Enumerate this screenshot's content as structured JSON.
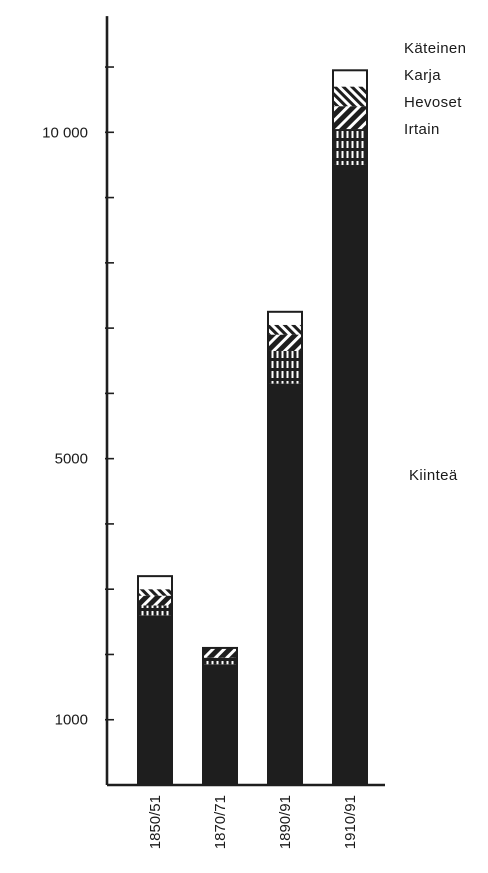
{
  "chart_data": {
    "type": "bar",
    "stacked": true,
    "categories": [
      "1850/51",
      "1870/71",
      "1890/91",
      "1910/91"
    ],
    "series": [
      {
        "name": "Kiinteä",
        "pattern": "solid",
        "values": [
          2600,
          1850,
          6150,
          9500
        ]
      },
      {
        "name": "Irtain",
        "pattern": "vertical-dashes",
        "values": [
          150,
          100,
          500,
          550
        ]
      },
      {
        "name": "Hevoset",
        "pattern": "diagonal",
        "values": [
          150,
          150,
          250,
          350
        ]
      },
      {
        "name": "Karja",
        "pattern": "cross-hatch",
        "values": [
          100,
          0,
          150,
          300
        ]
      },
      {
        "name": "Käteinen",
        "pattern": "white",
        "values": [
          200,
          0,
          200,
          250
        ]
      }
    ],
    "yticks": [
      {
        "value": 1000,
        "label": "1000"
      },
      {
        "value": 5000,
        "label": "5000"
      },
      {
        "value": 10000,
        "label": "10 000"
      }
    ],
    "ylim": [
      0,
      11750
    ],
    "legend_order": [
      "Käteinen",
      "Karja",
      "Hevoset",
      "Irtain",
      "Kiinteä"
    ],
    "legend_placement": "right",
    "title": "",
    "xlabel": "",
    "ylabel": "",
    "grid": false,
    "colors": {
      "bar": "#1e1e1e",
      "axis": "#1e1e1e",
      "background": "#ffffff"
    }
  }
}
